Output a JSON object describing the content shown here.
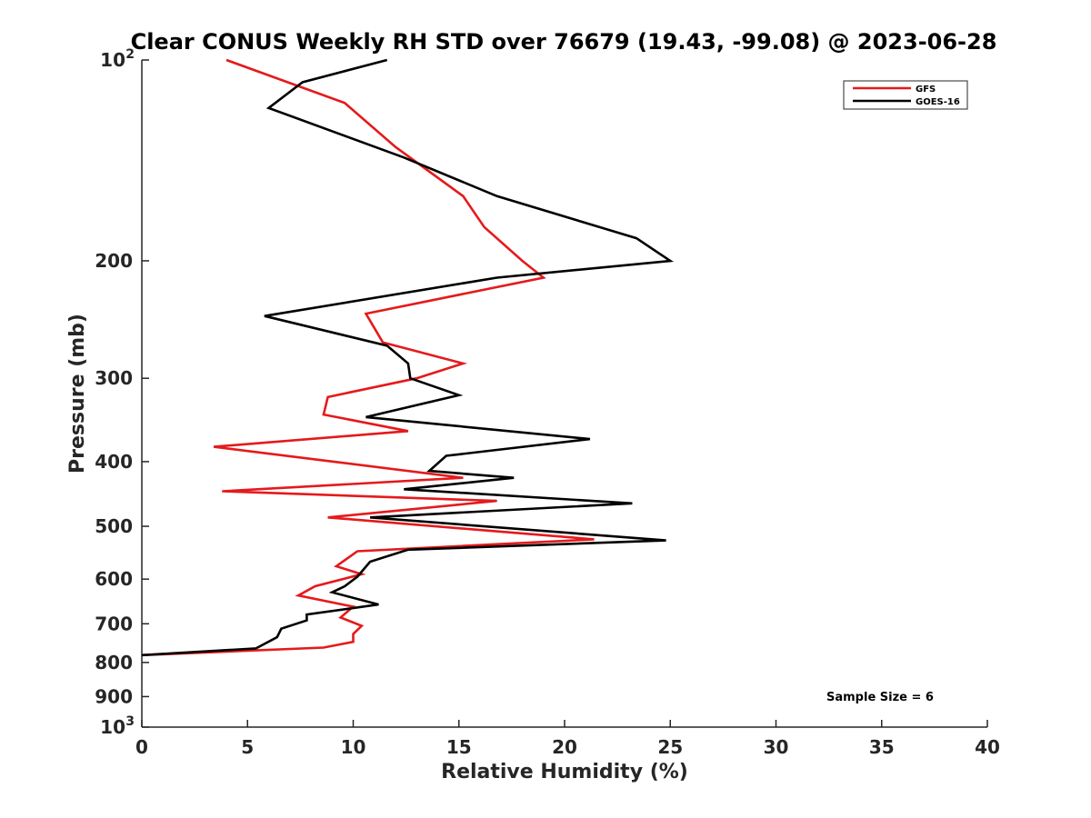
{
  "chart_data": {
    "type": "line",
    "title": "Clear CONUS Weekly RH STD over 76679 (19.43, -99.08) @ 2023-06-28",
    "xlabel": "Relative Humidity (%)",
    "ylabel": "Pressure (mb)",
    "xlim": [
      0,
      40
    ],
    "ylim": [
      100,
      1000
    ],
    "yscale": "log",
    "y_reversed": true,
    "xticks": [
      0,
      5,
      10,
      15,
      20,
      25,
      30,
      35,
      40
    ],
    "yticks": [
      {
        "value": 100,
        "label": "10",
        "sup": "2"
      },
      {
        "value": 200,
        "label": "200",
        "sup": ""
      },
      {
        "value": 300,
        "label": "300",
        "sup": ""
      },
      {
        "value": 400,
        "label": "400",
        "sup": ""
      },
      {
        "value": 500,
        "label": "500",
        "sup": ""
      },
      {
        "value": 600,
        "label": "600",
        "sup": ""
      },
      {
        "value": 700,
        "label": "700",
        "sup": ""
      },
      {
        "value": 800,
        "label": "800",
        "sup": ""
      },
      {
        "value": 900,
        "label": "900",
        "sup": ""
      },
      {
        "value": 1000,
        "label": "10",
        "sup": "3"
      }
    ],
    "legend_position": "top-right",
    "series": [
      {
        "name": "GFS",
        "color": "#e41a1c",
        "points": [
          [
            4.0,
            100
          ],
          [
            9.6,
            116
          ],
          [
            12.0,
            135
          ],
          [
            15.2,
            160
          ],
          [
            16.2,
            178
          ],
          [
            18.0,
            200
          ],
          [
            19.0,
            212
          ],
          [
            10.6,
            240
          ],
          [
            11.4,
            265
          ],
          [
            15.2,
            285
          ],
          [
            13.0,
            300
          ],
          [
            8.8,
            320
          ],
          [
            8.6,
            340
          ],
          [
            12.6,
            360
          ],
          [
            3.4,
            380
          ],
          [
            15.2,
            423
          ],
          [
            3.8,
            443
          ],
          [
            16.8,
            458
          ],
          [
            8.8,
            485
          ],
          [
            21.4,
            523
          ],
          [
            10.2,
            545
          ],
          [
            9.2,
            574
          ],
          [
            10.4,
            590
          ],
          [
            8.2,
            615
          ],
          [
            7.4,
            635
          ],
          [
            10.0,
            660
          ],
          [
            9.4,
            685
          ],
          [
            10.4,
            705
          ],
          [
            10.0,
            725
          ],
          [
            10.0,
            745
          ],
          [
            8.6,
            760
          ],
          [
            0.0,
            780
          ]
        ]
      },
      {
        "name": "GOES-16",
        "color": "#000000",
        "points": [
          [
            11.6,
            100
          ],
          [
            7.6,
            108
          ],
          [
            6.0,
            118
          ],
          [
            12.4,
            140
          ],
          [
            16.8,
            160
          ],
          [
            23.4,
            185
          ],
          [
            25.0,
            200
          ],
          [
            16.8,
            212
          ],
          [
            5.8,
            242
          ],
          [
            11.6,
            268
          ],
          [
            12.6,
            285
          ],
          [
            12.7,
            300
          ],
          [
            15.0,
            318
          ],
          [
            10.6,
            343
          ],
          [
            21.2,
            370
          ],
          [
            14.4,
            392
          ],
          [
            13.6,
            413
          ],
          [
            17.6,
            423
          ],
          [
            12.4,
            440
          ],
          [
            23.2,
            462
          ],
          [
            10.8,
            485
          ],
          [
            24.8,
            525
          ],
          [
            12.6,
            542
          ],
          [
            10.8,
            565
          ],
          [
            10.2,
            595
          ],
          [
            9.6,
            615
          ],
          [
            9.0,
            628
          ],
          [
            11.2,
            655
          ],
          [
            7.8,
            678
          ],
          [
            7.8,
            692
          ],
          [
            6.6,
            712
          ],
          [
            6.4,
            733
          ],
          [
            5.4,
            762
          ],
          [
            0.0,
            780
          ]
        ]
      }
    ],
    "annotations": [
      "Sample Size = 6"
    ]
  }
}
